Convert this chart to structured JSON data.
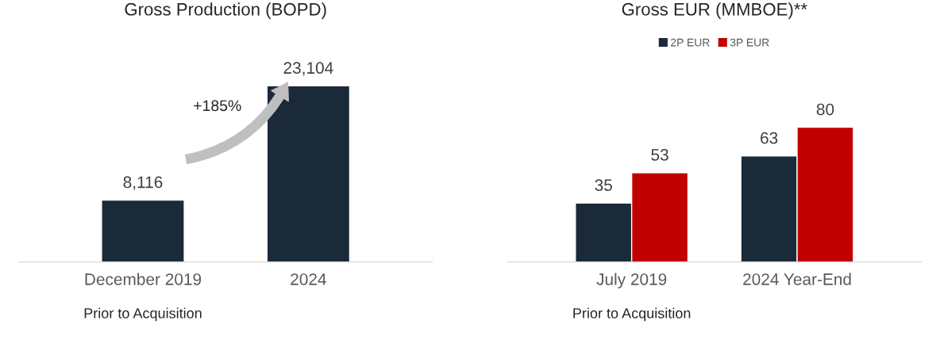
{
  "chart_data": [
    {
      "type": "bar",
      "title": "Gross Production (BOPD)",
      "categories": [
        "December 2019",
        "2024"
      ],
      "values": [
        8116,
        23104
      ],
      "value_labels": [
        "8,116",
        "23,104"
      ],
      "color": "#1b2a38",
      "grid": false,
      "legend": false,
      "tick_labels": "x",
      "annotations": [
        "+185%",
        "Prior to Acquisition"
      ]
    },
    {
      "type": "bar",
      "title": "Gross EUR (MMBOE)**",
      "categories": [
        "July 2019",
        "2024 Year-End"
      ],
      "series": [
        {
          "name": "2P EUR",
          "color": "#1b2a38",
          "values": [
            35,
            63
          ]
        },
        {
          "name": "3P EUR",
          "color": "#c00000",
          "values": [
            53,
            80
          ]
        }
      ],
      "data_labels": true,
      "grid": false,
      "legend": "top",
      "tick_labels": "x",
      "annotations": [
        "Prior to Acquisition"
      ]
    }
  ]
}
